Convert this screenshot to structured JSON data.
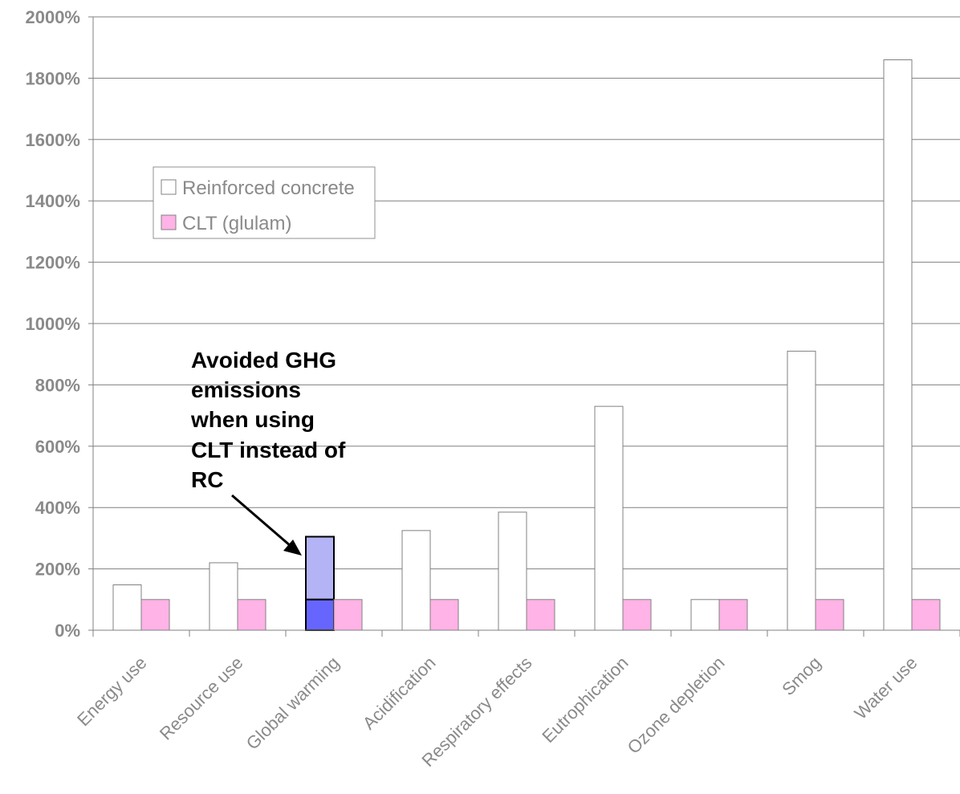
{
  "chart_data": {
    "type": "bar",
    "categories": [
      "Energy use",
      "Resource use",
      "Global warming",
      "Acidification",
      "Respiratory effects",
      "Eutrophication",
      "Ozone depletion",
      "Smog",
      "Water use"
    ],
    "series": [
      {
        "name": "Reinforced concrete",
        "values": [
          148,
          220,
          305,
          325,
          385,
          730,
          100,
          910,
          1860
        ]
      },
      {
        "name": "CLT (glulam)",
        "values": [
          100,
          100,
          100,
          100,
          100,
          100,
          100,
          100,
          100
        ]
      }
    ],
    "yticks": [
      "0%",
      "200%",
      "400%",
      "600%",
      "800%",
      "1000%",
      "1200%",
      "1400%",
      "1600%",
      "1800%",
      "2000%"
    ],
    "ylim": [
      0,
      2000
    ],
    "grid": true,
    "legend": "top-left",
    "annotation": {
      "lines": [
        "Avoided GHG",
        "emissions",
        "when using",
        "CLT instead of",
        "RC"
      ],
      "category": "Global warming",
      "highlight_low": 100,
      "highlight_high": 305
    },
    "colors": {
      "series_0": "#ffffff",
      "series_1": "#ffb3e6",
      "bar_border": "#808080",
      "grid": "#808080",
      "highlight_light": "#b3b3f5",
      "highlight_dark": "#6666ff",
      "annotation": "#000000"
    }
  }
}
